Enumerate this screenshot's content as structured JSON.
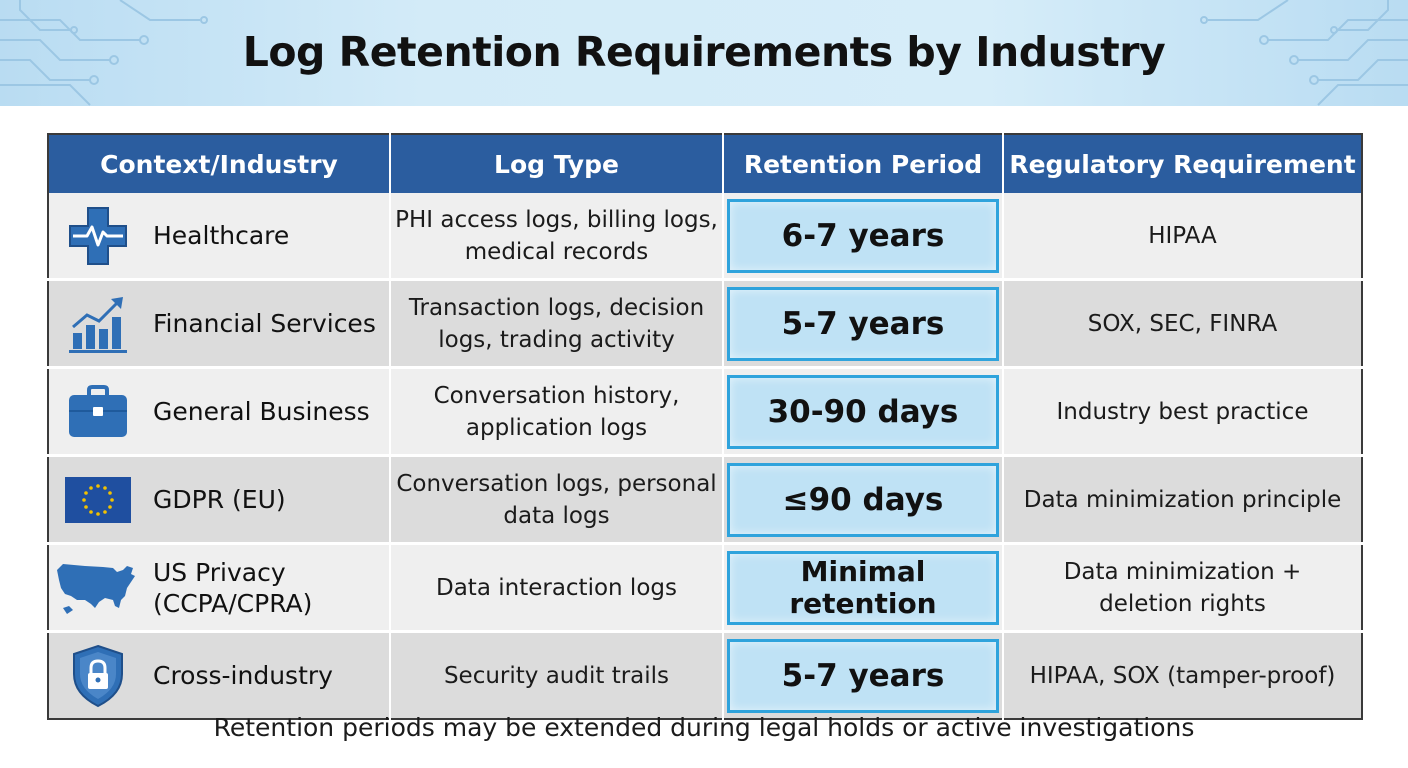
{
  "title": "Log Retention Requirements by Industry",
  "colors": {
    "header_bg": "#2b5d9f",
    "retention_bg": "#bfe2f5",
    "retention_border": "#2fa3dc",
    "icon_blue": "#2f6fb6",
    "row_light": "#efefef",
    "row_dark": "#dcdcdc"
  },
  "table": {
    "headers": [
      "Context/Industry",
      "Log Type",
      "Retention Period",
      "Regulatory Requirement"
    ],
    "rows": [
      {
        "icon": "medical-cross-icon",
        "industry": "Healthcare",
        "log_type": "PHI access logs, billing logs, medical records",
        "retention": "6-7 years",
        "requirement": "HIPAA"
      },
      {
        "icon": "growth-chart-icon",
        "industry": "Financial Services",
        "log_type": "Transaction logs, decision logs, trading activity",
        "retention": "5-7 years",
        "requirement": "SOX, SEC, FINRA"
      },
      {
        "icon": "briefcase-icon",
        "industry": "General Business",
        "log_type": "Conversation history, application logs",
        "retention": "30-90 days",
        "requirement": "Industry best practice"
      },
      {
        "icon": "eu-flag-icon",
        "industry": "GDPR (EU)",
        "log_type": "Conversation logs, personal data logs",
        "retention": "≤90 days",
        "requirement": "Data minimization principle"
      },
      {
        "icon": "us-map-icon",
        "industry": "US Privacy (CCPA/CPRA)",
        "log_type": "Data interaction logs",
        "retention": "Minimal retention",
        "requirement": "Data minimization + deletion rights"
      },
      {
        "icon": "shield-lock-icon",
        "industry": "Cross-industry",
        "log_type": "Security audit trails",
        "retention": "5-7 years",
        "requirement": "HIPAA, SOX (tamper-proof)"
      }
    ]
  },
  "footer": "Retention periods may be extended during legal holds or active investigations"
}
